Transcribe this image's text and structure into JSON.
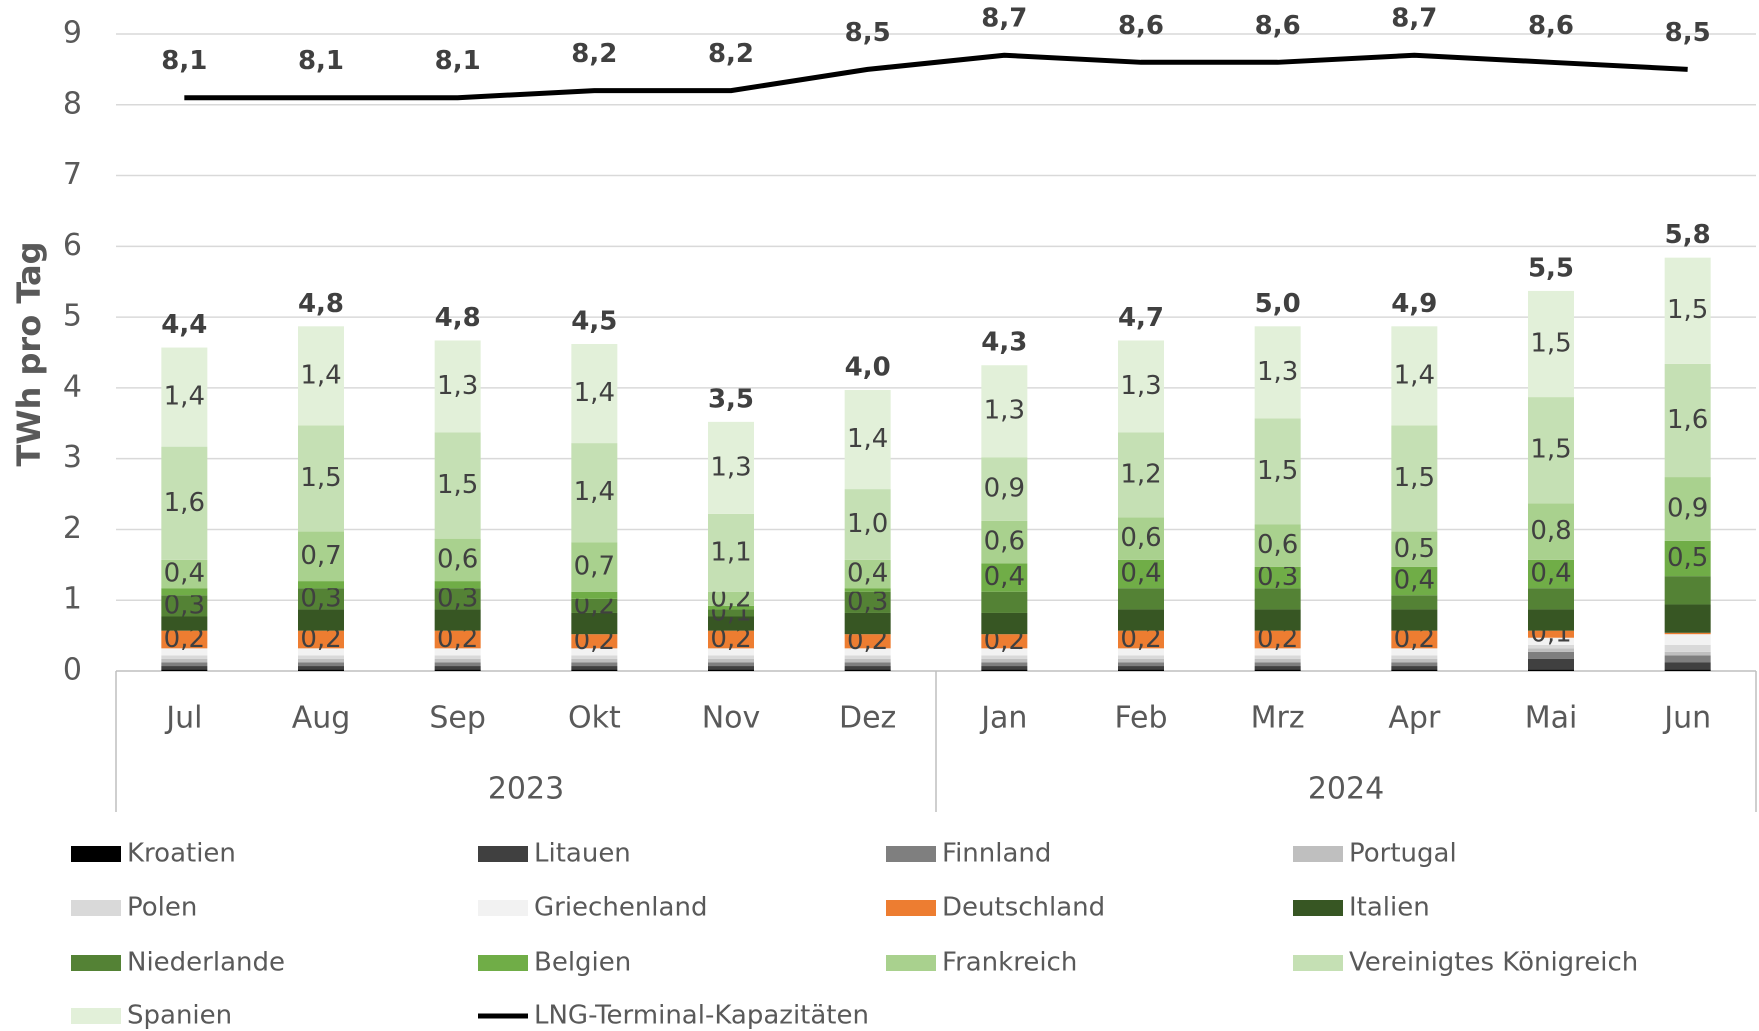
{
  "chart_data": {
    "type": "bar",
    "stacked": true,
    "y_label": "TWh pro Tag",
    "category_groups": [
      {
        "label": "2023",
        "categories": [
          "Jul",
          "Aug",
          "Sep",
          "Okt",
          "Nov",
          "Dez"
        ]
      },
      {
        "label": "2024",
        "categories": [
          "Jan",
          "Feb",
          "Mrz",
          "Apr",
          "Mai",
          "Jun"
        ]
      }
    ],
    "ylim": [
      0,
      9
    ],
    "yticks": [
      0,
      1,
      2,
      3,
      4,
      5,
      6,
      7,
      8,
      9
    ],
    "grid": true,
    "legend": "bottom",
    "series": [
      {
        "name": "Kroatien",
        "color": "#000000",
        "values": [
          0.02,
          0.02,
          0.02,
          0.02,
          0.02,
          0.02,
          0.02,
          0.02,
          0.02,
          0.02,
          0.02,
          0.02
        ]
      },
      {
        "name": "Litauen",
        "color": "#404040",
        "values": [
          0.05,
          0.05,
          0.05,
          0.05,
          0.05,
          0.05,
          0.05,
          0.05,
          0.05,
          0.05,
          0.15,
          0.1
        ]
      },
      {
        "name": "Finnland",
        "color": "#7f7f7f",
        "values": [
          0.05,
          0.05,
          0.05,
          0.05,
          0.05,
          0.05,
          0.05,
          0.05,
          0.05,
          0.05,
          0.1,
          0.1
        ]
      },
      {
        "name": "Portugal",
        "color": "#bfbfbf",
        "values": [
          0.05,
          0.05,
          0.05,
          0.05,
          0.05,
          0.05,
          0.05,
          0.05,
          0.05,
          0.05,
          0.05,
          0.05
        ]
      },
      {
        "name": "Polen",
        "color": "#d9d9d9",
        "values": [
          0.05,
          0.05,
          0.05,
          0.05,
          0.05,
          0.05,
          0.05,
          0.05,
          0.05,
          0.05,
          0.05,
          0.1
        ]
      },
      {
        "name": "Griechenland",
        "color": "#f2f2f2",
        "values": [
          0.1,
          0.1,
          0.1,
          0.1,
          0.1,
          0.1,
          0.1,
          0.1,
          0.1,
          0.1,
          0.1,
          0.15
        ]
      },
      {
        "name": "Deutschland",
        "color": "#ed7d31",
        "values": [
          0.25,
          0.25,
          0.25,
          0.2,
          0.25,
          0.2,
          0.2,
          0.25,
          0.25,
          0.25,
          0.1,
          0.02
        ],
        "value_labels": [
          "0,2",
          "0,2",
          "0,2",
          "0,2",
          "0,2",
          "0,2",
          "0,2",
          "0,2",
          "0,2",
          "0,2",
          "0,1",
          null
        ]
      },
      {
        "name": "Italien",
        "color": "#375623",
        "values": [
          0.2,
          0.3,
          0.3,
          0.3,
          0.2,
          0.3,
          0.3,
          0.3,
          0.3,
          0.3,
          0.3,
          0.4
        ]
      },
      {
        "name": "Niederlande",
        "color": "#548235",
        "values": [
          0.3,
          0.3,
          0.3,
          0.2,
          0.1,
          0.3,
          0.3,
          0.3,
          0.3,
          0.2,
          0.3,
          0.4
        ],
        "value_labels": [
          "0,3",
          "0,3",
          "0,3",
          "0,2",
          "0,1",
          "0,3",
          null,
          null,
          null,
          null,
          null,
          null
        ]
      },
      {
        "name": "Belgien",
        "color": "#70ad47",
        "values": [
          0.1,
          0.1,
          0.1,
          0.1,
          0.05,
          0.05,
          0.4,
          0.4,
          0.3,
          0.4,
          0.4,
          0.5
        ],
        "value_labels": [
          null,
          null,
          null,
          null,
          null,
          null,
          "0,4",
          "0,4",
          "0,3",
          "0,4",
          "0,4",
          "0,5"
        ]
      },
      {
        "name": "Frankreich",
        "color": "#a9d18e",
        "values": [
          0.4,
          0.7,
          0.6,
          0.7,
          0.2,
          0.4,
          0.6,
          0.6,
          0.6,
          0.5,
          0.8,
          0.9
        ],
        "value_labels": [
          "0,4",
          "0,7",
          "0,6",
          "0,7",
          "0,2",
          "0,4",
          "0,6",
          "0,6",
          "0,6",
          "0,5",
          "0,8",
          "0,9"
        ]
      },
      {
        "name": "Vereinigtes Königreich",
        "color": "#c5e0b4",
        "values": [
          1.6,
          1.5,
          1.5,
          1.4,
          1.1,
          1.0,
          0.9,
          1.2,
          1.5,
          1.5,
          1.5,
          1.6
        ],
        "value_labels": [
          "1,6",
          "1,5",
          "1,5",
          "1,4",
          "1,1",
          "1,0",
          "0,9",
          "1,2",
          "1,5",
          "1,5",
          "1,5",
          "1,6"
        ]
      },
      {
        "name": "Spanien",
        "color": "#e2f0d9",
        "values": [
          1.4,
          1.4,
          1.3,
          1.4,
          1.3,
          1.4,
          1.3,
          1.3,
          1.3,
          1.4,
          1.5,
          1.5
        ],
        "value_labels": [
          "1,4",
          "1,4",
          "1,3",
          "1,4",
          "1,3",
          "1,4",
          "1,3",
          "1,3",
          "1,3",
          "1,4",
          "1,5",
          "1,5"
        ]
      },
      {
        "name": "LNG-Terminal-Kapazitäten",
        "type": "line",
        "color": "#000000",
        "values": [
          8.1,
          8.1,
          8.1,
          8.2,
          8.2,
          8.5,
          8.7,
          8.6,
          8.6,
          8.7,
          8.6,
          8.5
        ],
        "value_labels": [
          "8,1",
          "8,1",
          "8,1",
          "8,2",
          "8,2",
          "8,5",
          "8,7",
          "8,6",
          "8,6",
          "8,7",
          "8,6",
          "8,5"
        ]
      }
    ],
    "totals": [
      4.4,
      4.8,
      4.8,
      4.5,
      3.5,
      4.0,
      4.3,
      4.7,
      5.0,
      4.9,
      5.5,
      5.8
    ],
    "total_labels": [
      "4,4",
      "4,8",
      "4,8",
      "4,5",
      "3,5",
      "4,0",
      "4,3",
      "4,7",
      "5,0",
      "4,9",
      "5,5",
      "5,8"
    ]
  }
}
